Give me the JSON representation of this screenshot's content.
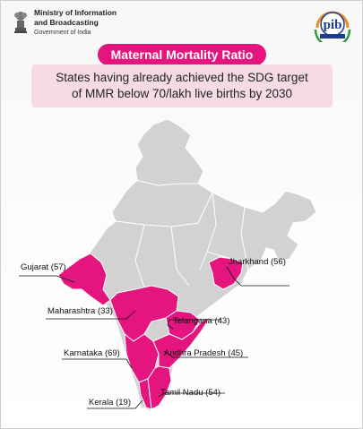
{
  "header": {
    "ministry_line1": "Ministry of Information",
    "ministry_line2": "and Broadcasting",
    "ministry_line3": "Government of India",
    "emblem_icon": "national-emblem-icon",
    "pib_logo": "pib-logo-icon"
  },
  "title": "Maternal Mortality Ratio",
  "subtitle": {
    "line1": "States having already achieved the SDG target",
    "line2": "of MMR below 70/lakh live births by 2030"
  },
  "colors": {
    "highlight": "#e4157f",
    "base_map": "#d2d2d2",
    "title_bg": "#e4157f",
    "subtitle_bg": "#f6dbe7"
  },
  "states": [
    {
      "name": "Gujarat",
      "mmr": "57",
      "label": "Gujarat (57)"
    },
    {
      "name": "Jharkhand",
      "mmr": "56",
      "label": "Jharkhand (56)"
    },
    {
      "name": "Maharashtra",
      "mmr": "33",
      "label": "Maharashtra (33)"
    },
    {
      "name": "Telangana",
      "mmr": "43",
      "label": "Telangana (43)"
    },
    {
      "name": "Karnataka",
      "mmr": "69",
      "label": "Karnataka (69)"
    },
    {
      "name": "Andhra Pradesh",
      "mmr": "45",
      "label": "Andhra Pradesh (45)"
    },
    {
      "name": "Tamil Nadu",
      "mmr": "54",
      "label": "Tamil Nadu (54)"
    },
    {
      "name": "Kerala",
      "mmr": "19",
      "label": "Kerala (19)"
    }
  ]
}
